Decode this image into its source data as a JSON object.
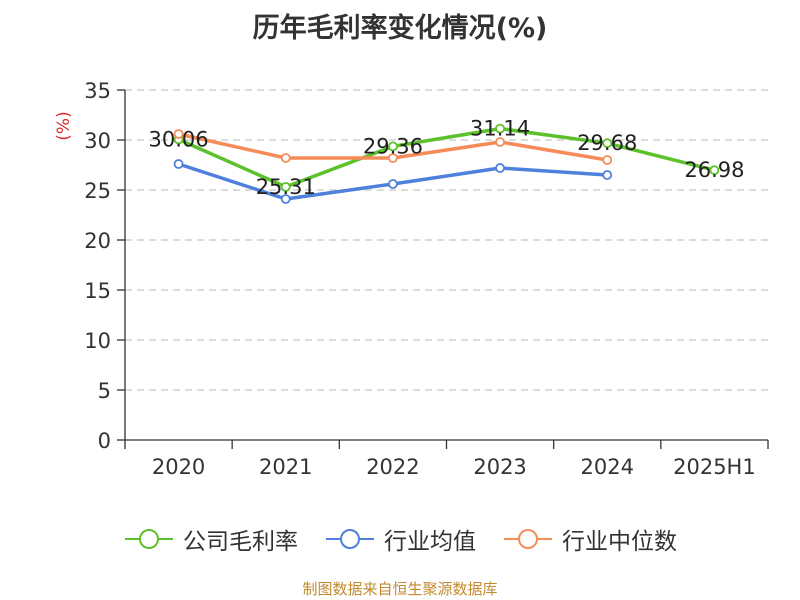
{
  "chart_data": {
    "type": "line",
    "title": "历年毛利率变化情况(%)",
    "ylabel": "(%)",
    "xlabel": "",
    "categories": [
      "2020",
      "2021",
      "2022",
      "2023",
      "2024",
      "2025H1"
    ],
    "ylim": [
      0,
      35
    ],
    "yticks": [
      0,
      5,
      10,
      15,
      20,
      25,
      30,
      35
    ],
    "grid": true,
    "legend_position": "bottom",
    "series": [
      {
        "name": "公司毛利率",
        "color": "#5dc12c",
        "values": [
          30.06,
          25.31,
          29.36,
          31.14,
          29.68,
          26.98
        ],
        "labels": [
          "30.06",
          "25.31",
          "29.36",
          "31.14",
          "29.68",
          "26.98"
        ]
      },
      {
        "name": "行业均值",
        "color": "#4e80dc",
        "values": [
          27.6,
          24.1,
          25.6,
          27.2,
          26.5,
          null
        ]
      },
      {
        "name": "行业中位数",
        "color": "#f68b5a",
        "values": [
          30.6,
          28.2,
          28.2,
          29.8,
          28.0,
          null
        ]
      }
    ]
  },
  "source_note": "制图数据来自恒生聚源数据库"
}
